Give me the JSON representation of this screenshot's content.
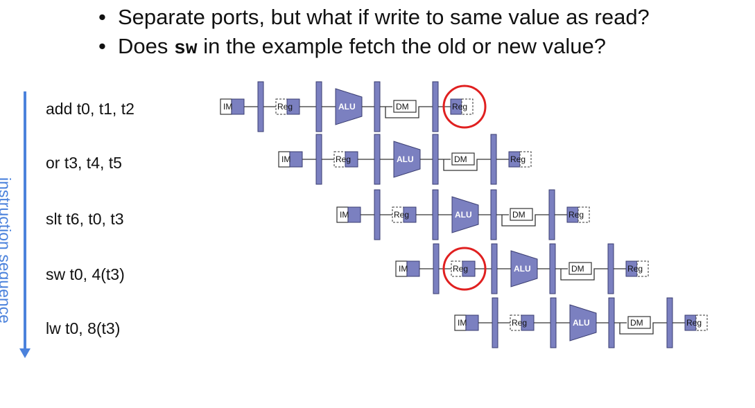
{
  "bullets": [
    {
      "text": "Separate ports, but what if write to same value as read?"
    },
    {
      "pre": "Does ",
      "code": "sw",
      "post": " in the example fetch the old or new value?"
    }
  ],
  "sequence_label": "instruction sequence",
  "stage_labels": {
    "im": "IM",
    "reg": "Reg",
    "alu": "ALU",
    "dm": "DM"
  },
  "instructions": [
    {
      "text": "add t0, t1, t2",
      "highlight": "writeback"
    },
    {
      "text": "or t3, t4, t5",
      "highlight": ""
    },
    {
      "text": "slt t6, t0, t3",
      "highlight": ""
    },
    {
      "text": "sw t0, 4(t3)",
      "highlight": "decode"
    },
    {
      "text": "lw t0, 8(t3)",
      "highlight": ""
    }
  ],
  "colors": {
    "stage_fill": "#7b80c0",
    "stage_stroke": "#3a3d70",
    "highlight": "#e02020",
    "arrow": "#4b82dc"
  }
}
